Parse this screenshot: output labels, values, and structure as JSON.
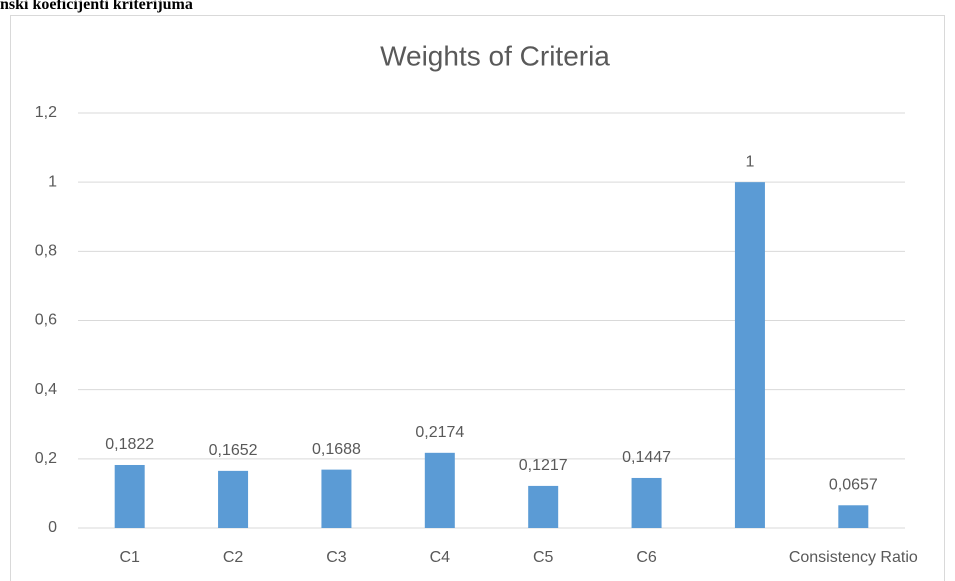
{
  "heading": "nski koeficijenti kriterijuma",
  "chart_data": {
    "type": "bar",
    "title": "Weights of Criteria",
    "categories": [
      "C1",
      "C2",
      "C3",
      "C4",
      "C5",
      "C6",
      null,
      "Consistency Ratio"
    ],
    "values": [
      0.1822,
      0.1652,
      0.1688,
      0.2174,
      0.1217,
      0.1447,
      1,
      0.0657
    ],
    "value_labels": [
      "0,1822",
      "0,1652",
      "0,1688",
      "0,2174",
      "0,1217",
      "0,1447",
      "1",
      "0,0657"
    ],
    "color": "#5b9bd5",
    "ylim": [
      0,
      1.2
    ],
    "yticks": [
      0,
      {
        "value": 0.2,
        "label": "0,2"
      },
      {
        "value": 0.4,
        "label": "0,4"
      },
      {
        "value": 0.6,
        "label": "0,6"
      },
      {
        "value": 0.8,
        "label": "0,8"
      },
      1,
      {
        "value": 1.2,
        "label": "1,2"
      }
    ],
    "grid": true
  }
}
